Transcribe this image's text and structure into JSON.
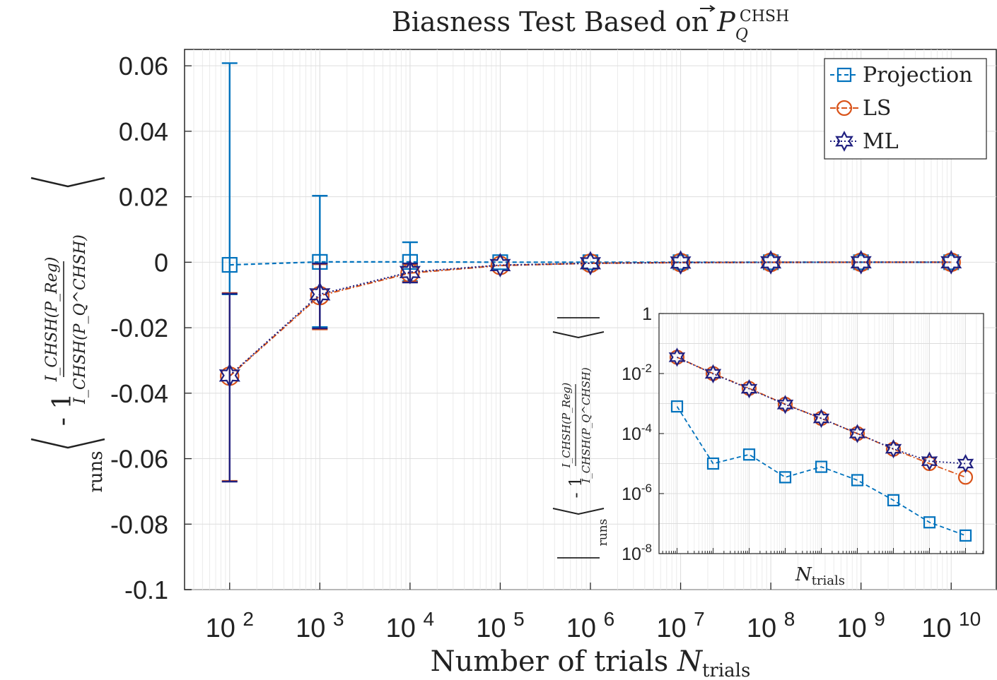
{
  "chart_data": [
    {
      "type": "line",
      "title": "Biasness Test Based on P_Q^CHSH",
      "title_parts": {
        "prefix": "Biasness Test Based on ",
        "symbol": "P",
        "sub": "Q",
        "sup": "CHSH"
      },
      "xlabel": "Number of trials N_trials",
      "xlabel_parts": {
        "text": "Number of trials ",
        "symbol": "N",
        "sub": "trials"
      },
      "ylabel": "< I_CHSH(P_Reg) / I_CHSH(P_Q^CHSH) - 1 >_runs",
      "ylabel_parts": {
        "num": "I_CHSH(P_Reg)",
        "den": "I_CHSH(P_Q^CHSH)",
        "tail": "- 1",
        "sub": "runs"
      },
      "xscale": "log",
      "xlim_exp": [
        1.5,
        10.5
      ],
      "ylim": [
        -0.1,
        0.065
      ],
      "x_exponents": [
        2,
        3,
        4,
        5,
        6,
        7,
        8,
        9,
        10
      ],
      "xtick_labels": [
        {
          "base": "10",
          "exp": "2"
        },
        {
          "base": "10",
          "exp": "3"
        },
        {
          "base": "10",
          "exp": "4"
        },
        {
          "base": "10",
          "exp": "5"
        },
        {
          "base": "10",
          "exp": "6"
        },
        {
          "base": "10",
          "exp": "7"
        },
        {
          "base": "10",
          "exp": "8"
        },
        {
          "base": "10",
          "exp": "9"
        },
        {
          "base": "10",
          "exp": "10"
        }
      ],
      "yticks": [
        0.06,
        0.04,
        0.02,
        0,
        -0.02,
        -0.04,
        -0.06,
        -0.08,
        -0.1
      ],
      "ytick_labels": [
        "0.06",
        "0.04",
        "0.02",
        "0",
        "-0.02",
        "-0.04",
        "-0.06",
        "-0.08",
        "-0.1"
      ],
      "grid": true,
      "legend": {
        "position": "top-right",
        "entries": [
          "Projection",
          "LS",
          "ML"
        ]
      },
      "series": [
        {
          "name": "Projection",
          "color": "#0072BD",
          "marker": "square",
          "linestyle": "dashed",
          "values": [
            -0.0008,
            0.0001,
            0.0001,
            1e-05,
            3e-06,
            8e-07,
            3e-07,
            1e-07,
            4e-08
          ],
          "err_upper": [
            0.0608,
            0.0203,
            0.0061,
            null,
            null,
            null,
            null,
            null,
            null
          ],
          "err_lower": [
            -0.0098,
            -0.0198,
            -0.0058,
            null,
            null,
            null,
            null,
            null,
            null
          ]
        },
        {
          "name": "LS",
          "color": "#D95319",
          "marker": "circle",
          "linestyle": "dashdot",
          "values": [
            -0.0348,
            -0.0102,
            -0.0033,
            -0.001,
            -0.0003,
            -0.0001,
            -3e-05,
            -1e-05,
            -3e-06
          ],
          "err_upper": [
            -0.0094,
            -0.0006,
            -0.0006,
            null,
            null,
            null,
            null,
            null,
            null
          ],
          "err_lower": [
            -0.0668,
            -0.0205,
            -0.006,
            null,
            null,
            null,
            null,
            null,
            null
          ]
        },
        {
          "name": "ML",
          "color": "#202080",
          "marker": "hexagram",
          "linestyle": "dotted",
          "values": [
            -0.0346,
            -0.0098,
            -0.003,
            -0.0009,
            -0.0003,
            -0.0001,
            -3e-05,
            -1.2e-05,
            -1e-05
          ],
          "err_upper": [
            -0.0096,
            -0.0004,
            -0.0004,
            null,
            null,
            null,
            null,
            null,
            null
          ],
          "err_lower": [
            -0.067,
            -0.0202,
            -0.0062,
            null,
            null,
            null,
            null,
            null,
            null
          ]
        }
      ]
    },
    {
      "type": "line",
      "title": "",
      "xlabel": "N_trials",
      "xlabel_parts": {
        "symbol": "N",
        "sub": "trials"
      },
      "ylabel": "| < I_CHSH(P_Reg) / I_CHSH(P_Q^CHSH) - 1 >_runs |",
      "ylabel_parts": {
        "num": "I_CHSH(P_Reg)",
        "den": "I_CHSH(P_Q^CHSH)",
        "tail": "- 1",
        "sub": "runs"
      },
      "yscale": "log",
      "xscale": "log",
      "xlim_exp": [
        1.5,
        10.5
      ],
      "ylim_exp": [
        -8,
        0
      ],
      "ytick_labels": [
        {
          "base": "1",
          "exp": ""
        },
        {
          "base": "10",
          "exp": "-2"
        },
        {
          "base": "10",
          "exp": "-4"
        },
        {
          "base": "10",
          "exp": "-6"
        },
        {
          "base": "10",
          "exp": "-8"
        }
      ],
      "x_exponents": [
        2,
        3,
        4,
        5,
        6,
        7,
        8,
        9,
        10
      ],
      "grid": true,
      "series": [
        {
          "name": "Projection",
          "color": "#0072BD",
          "marker": "square",
          "linestyle": "dashed",
          "values": [
            0.0008,
            1e-05,
            2e-05,
            3.5e-06,
            7.8e-06,
            2.8e-06,
            6e-07,
            1.1e-07,
            4e-08
          ]
        },
        {
          "name": "LS",
          "color": "#D95319",
          "marker": "circle",
          "linestyle": "dashdot",
          "values": [
            0.035,
            0.01,
            0.0032,
            0.00095,
            0.00032,
            0.0001,
            3e-05,
            1e-05,
            3.5e-06
          ]
        },
        {
          "name": "ML",
          "color": "#202080",
          "marker": "hexagram",
          "linestyle": "dotted",
          "values": [
            0.035,
            0.0098,
            0.0031,
            0.00093,
            0.00032,
            0.0001,
            3.1e-05,
            1.2e-05,
            1e-05
          ]
        }
      ]
    }
  ]
}
